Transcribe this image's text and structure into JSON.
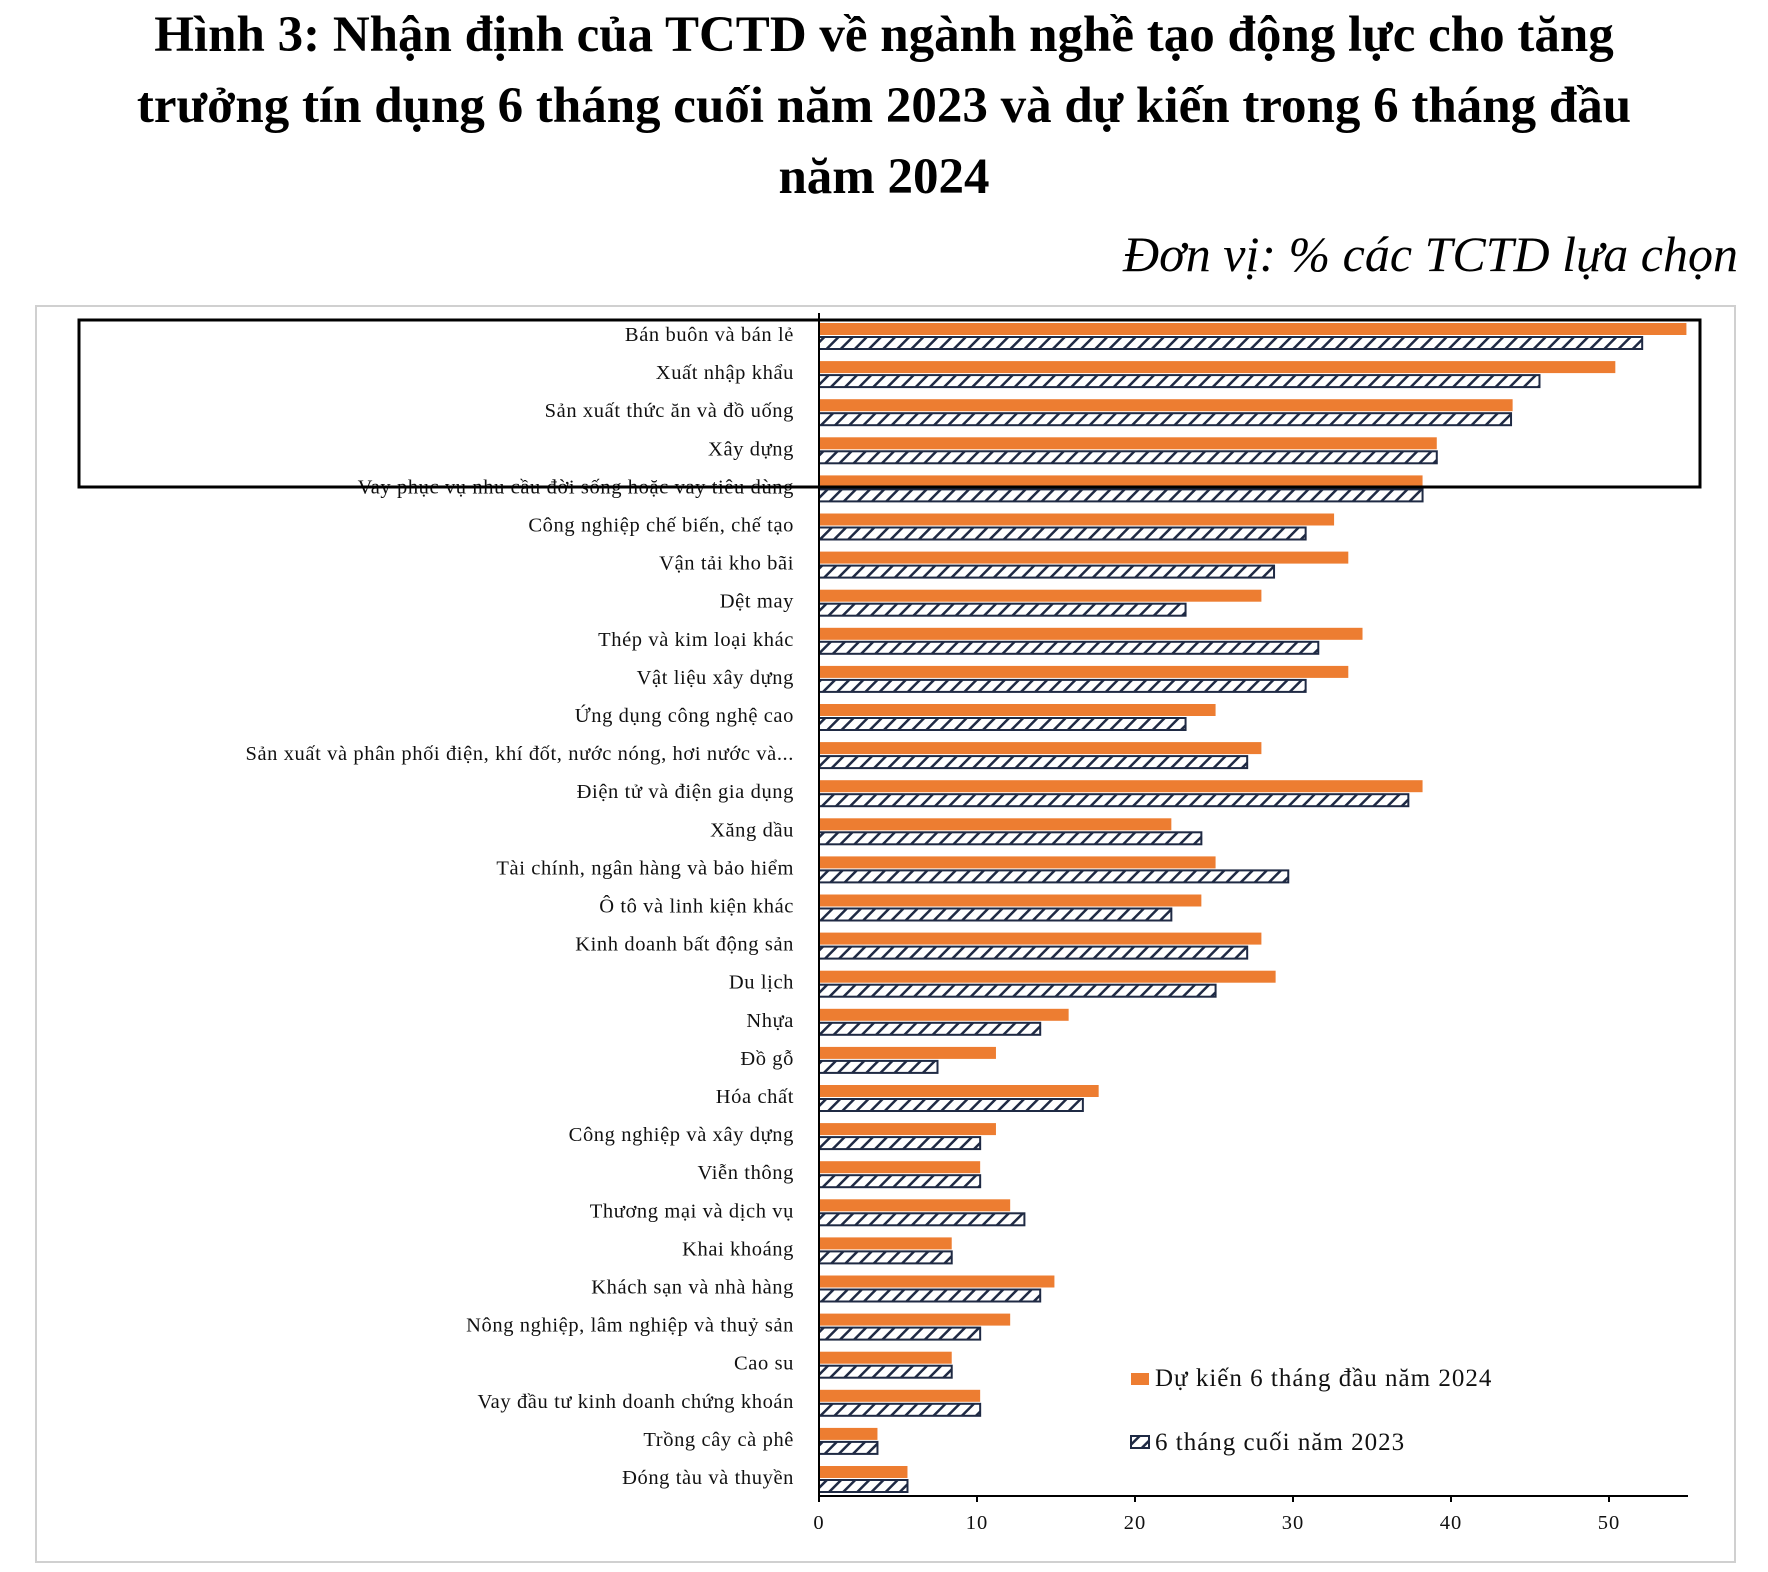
{
  "title": {
    "line1": "Hình 3: Nhận định của TCTD về ngành nghề tạo động lực cho tăng",
    "line2": "trưởng tín dụng 6 tháng cuối năm 2023 và dự kiến trong 6 tháng đầu",
    "line3": "năm 2024"
  },
  "unit": "Đơn vị: % các TCTD lựa chọn",
  "colors": {
    "forecast": "#ED7D31",
    "actual_stroke": "#1F2A44",
    "actual_fill": "#ffffff"
  },
  "chart_data": {
    "type": "bar",
    "orientation": "horizontal",
    "categories": [
      "Bán buôn và bán lẻ",
      "Xuất nhập khẩu",
      "Sản xuất thức ăn và đồ uống",
      "Xây dựng",
      "Vay phục vụ nhu cầu đời sống hoặc vay tiêu dùng",
      "Công nghiệp chế biến, chế tạo",
      "Vận tải kho bãi",
      "Dệt may",
      "Thép và kim loại khác",
      "Vật liệu xây dựng",
      "Ứng dụng công nghệ cao",
      "Sản xuất và phân phối điện, khí đốt, nước nóng, hơi nước và...",
      "Điện tử và điện gia dụng",
      "Xăng dầu",
      "Tài chính, ngân hàng và bảo hiểm",
      "Ô tô và linh kiện khác",
      "Kinh doanh bất động sản",
      "Du lịch",
      "Nhựa",
      "Đồ gỗ",
      "Hóa chất",
      "Công nghiệp và xây dựng",
      "Viễn thông",
      "Thương mại và dịch vụ",
      "Khai khoáng",
      "Khách sạn và nhà hàng",
      "Nông nghiệp, lâm nghiệp và thuỷ sản",
      "Cao su",
      "Vay đầu tư kinh doanh chứng khoán",
      "Trồng cây cà phê",
      "Đóng tàu và thuyền"
    ],
    "series": [
      {
        "name": "Dự kiến 6 tháng đầu năm 2024",
        "values": [
          54.9,
          50.4,
          43.9,
          39.1,
          38.2,
          32.6,
          33.5,
          28.0,
          34.4,
          33.5,
          25.1,
          28.0,
          38.2,
          22.3,
          25.1,
          24.2,
          28.0,
          28.9,
          15.8,
          11.2,
          17.7,
          11.2,
          10.2,
          12.1,
          8.4,
          14.9,
          12.1,
          8.4,
          10.2,
          3.7,
          5.6
        ]
      },
      {
        "name": "6 tháng cuối năm 2023",
        "values": [
          52.1,
          45.6,
          43.8,
          39.1,
          38.2,
          30.8,
          28.8,
          23.2,
          31.6,
          30.8,
          23.2,
          27.1,
          37.3,
          24.2,
          29.7,
          22.3,
          27.1,
          25.1,
          14.0,
          7.5,
          16.7,
          10.2,
          10.2,
          13.0,
          8.4,
          14.0,
          10.2,
          8.4,
          10.2,
          3.7,
          5.6
        ]
      }
    ],
    "xlim": [
      0,
      55
    ],
    "xticks": [
      "0",
      "10",
      "20",
      "30",
      "40",
      "50"
    ],
    "legend_position": "bottom-right",
    "highlight_box_categories": [
      "Bán buôn và bán lẻ",
      "Xuất nhập khẩu",
      "Sản xuất thức ăn và đồ uống",
      "Xây dựng"
    ]
  }
}
